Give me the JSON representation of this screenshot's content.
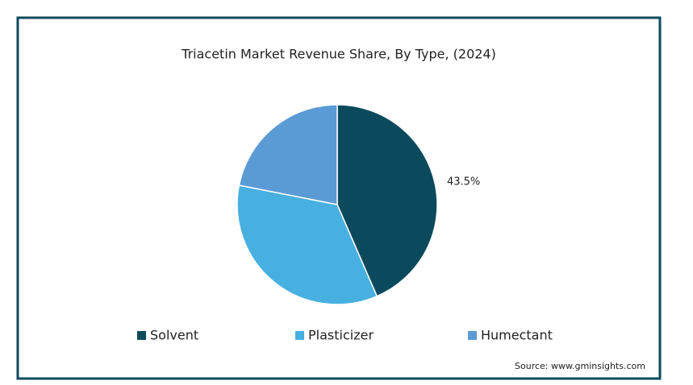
{
  "chart_data": {
    "type": "pie",
    "title": "Triacetin Market Revenue Share, By Type, (2024)",
    "categories": [
      "Solvent",
      "Plasticizer",
      "Humectant"
    ],
    "values": [
      43.5,
      34.6,
      21.9
    ],
    "value_labels": [
      "43.5%",
      null,
      null
    ],
    "colors": [
      "#0b4a5d",
      "#47b0e0",
      "#5b9bd5"
    ],
    "source": "Source: www.gminsights.com",
    "legend": "bottom"
  }
}
